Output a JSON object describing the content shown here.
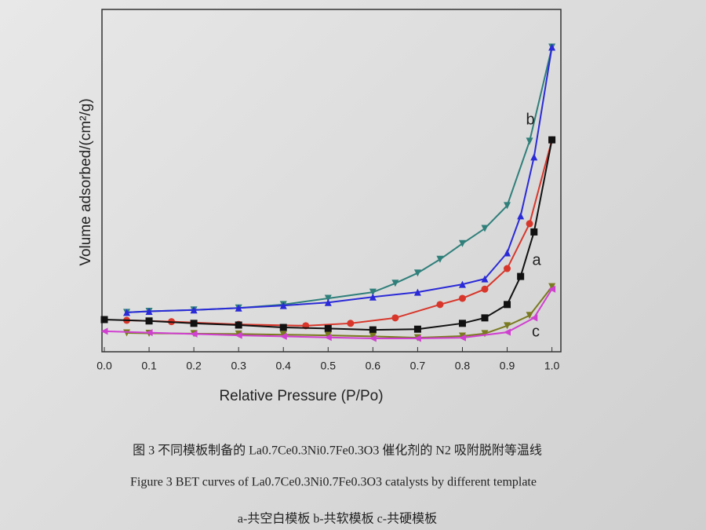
{
  "chart_data": {
    "type": "line",
    "xlabel": "Relative Pressure (P/Po)",
    "ylabel": "Volume adsorbed/(cm²/g)",
    "xlim": [
      0,
      1.02
    ],
    "ylim": [
      0,
      100
    ],
    "xticks": [
      {
        "value": 0,
        "label": "0.0"
      },
      0.1,
      0.2,
      0.3,
      0.4,
      0.5,
      0.6,
      0.7,
      0.8,
      0.9,
      {
        "value": 1,
        "label": "1.0"
      }
    ],
    "series": [
      {
        "color": "#2f7f7a",
        "marker": "down",
        "x": [
          0.05,
          0.1,
          0.2,
          0.3,
          0.4,
          0.5,
          0.6,
          0.65,
          0.7,
          0.75,
          0.8,
          0.85,
          0.9,
          0.95,
          1.0
        ],
        "values": [
          11.5,
          11.8,
          12.2,
          12.8,
          13.8,
          15.6,
          17.4,
          20,
          23,
          27,
          31.6,
          36,
          42.7,
          61.5,
          89
        ]
      },
      {
        "color": "#2a2ad8",
        "marker": "up",
        "x": [
          0.05,
          0.1,
          0.2,
          0.3,
          0.4,
          0.5,
          0.6,
          0.7,
          0.8,
          0.85,
          0.9,
          0.93,
          0.96,
          1.0
        ],
        "values": [
          11.5,
          11.8,
          12.2,
          12.8,
          13.5,
          14.4,
          16,
          17.4,
          19.7,
          21.3,
          28.9,
          39.7,
          56.9,
          89
        ]
      },
      {
        "color": "#d8362a",
        "marker": "circle",
        "x": [
          0.05,
          0.15,
          0.3,
          0.45,
          0.55,
          0.65,
          0.75,
          0.8,
          0.85,
          0.9,
          0.95,
          1.0
        ],
        "values": [
          9.2,
          8.8,
          8,
          7.6,
          8.3,
          9.9,
          13.8,
          15.6,
          18.3,
          24.3,
          37.4,
          61.9
        ]
      },
      {
        "color": "#111111",
        "marker": "square",
        "x": [
          0.0,
          0.1,
          0.2,
          0.3,
          0.4,
          0.5,
          0.6,
          0.7,
          0.8,
          0.85,
          0.9,
          0.93,
          0.96,
          1.0
        ],
        "values": [
          9.4,
          9,
          8.3,
          7.8,
          7.1,
          6.8,
          6.4,
          6.6,
          8.3,
          9.9,
          13.8,
          22,
          35,
          61.9
        ]
      },
      {
        "color": "#7a7a20",
        "marker": "down",
        "x": [
          0.05,
          0.1,
          0.2,
          0.3,
          0.4,
          0.5,
          0.6,
          0.7,
          0.8,
          0.85,
          0.9,
          0.95,
          1.0
        ],
        "values": [
          5.5,
          5.4,
          5.3,
          5.2,
          5,
          4.8,
          4.5,
          4.1,
          4.6,
          5.3,
          7.6,
          10.6,
          19
        ]
      },
      {
        "color": "#d040d0",
        "marker": "left",
        "x": [
          0.0,
          0.1,
          0.2,
          0.3,
          0.4,
          0.5,
          0.6,
          0.7,
          0.8,
          0.9,
          0.96,
          1.0
        ],
        "values": [
          6,
          5.6,
          5.2,
          4.8,
          4.5,
          4.2,
          3.9,
          3.9,
          4.1,
          5.7,
          9.9,
          18.3
        ]
      }
    ],
    "annotations": [
      "b",
      "a",
      "c"
    ]
  },
  "captions": [
    "图 3  不同模板制备的 La0.7Ce0.3Ni0.7Fe0.3O3 催化剂的 N2 吸附脱附等温线",
    "Figure 3 BET curves of La0.7Ce0.3Ni0.7Fe0.3O3 catalysts by different template",
    "a-共空白模板   b-共软模板   c-共硬模板"
  ]
}
